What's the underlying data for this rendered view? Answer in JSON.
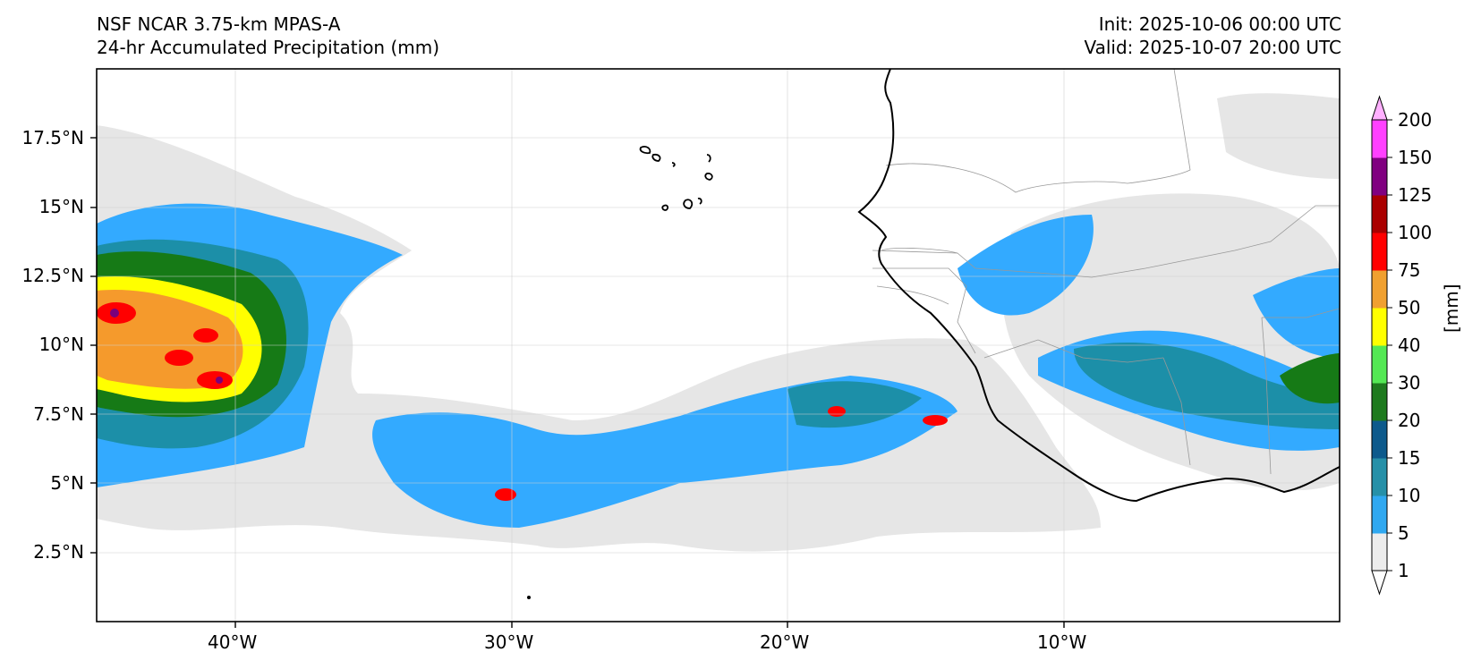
{
  "header": {
    "model": "NSF NCAR 3.75-km MPAS-A",
    "field": "24-hr Accumulated Precipitation (mm)",
    "init": "Init: 2025-10-06 00:00 UTC",
    "valid": "Valid: 2025-10-07 20:00 UTC"
  },
  "map": {
    "lon_range": [
      -45,
      0
    ],
    "lat_range": [
      0,
      20
    ],
    "lat_labels": [
      "17.5°N",
      "15°N",
      "12.5°N",
      "10°N",
      "7.5°N",
      "5°N",
      "2.5°N"
    ],
    "lon_labels": [
      "40°W",
      "30°W",
      "20°W",
      "10°W"
    ],
    "grid": true,
    "coastline_color": "#000000",
    "border_color": "#999999"
  },
  "colorbar": {
    "unit": "[mm]",
    "levels": [
      "1",
      "5",
      "10",
      "15",
      "20",
      "30",
      "40",
      "50",
      "75",
      "100",
      "125",
      "150",
      "200"
    ],
    "colors": [
      "#ececec",
      "#30a8f0",
      "#2690a8",
      "#0d5a8c",
      "#1e7a1e",
      "#54e854",
      "#ffff00",
      "#f0a030",
      "#ff0000",
      "#aa0000",
      "#800080",
      "#ff40ff"
    ],
    "extend_colors": {
      "below": "#ffffff",
      "above": "#ffb0ff"
    }
  },
  "legend_swatches": {
    "ocean": "#ffffff",
    "light_precip": "#e6e6e6",
    "blue": "#33aaff",
    "teal": "#1c8fa8",
    "dark_blue": "#0b5c8e",
    "dark_green": "#167a16",
    "light_green": "#5ee85e",
    "yellow": "#ffff00",
    "orange": "#f59a2c",
    "red": "#ff0000",
    "dark_red": "#a50000",
    "purple": "#7b007b",
    "magenta": "#ff44ff"
  }
}
